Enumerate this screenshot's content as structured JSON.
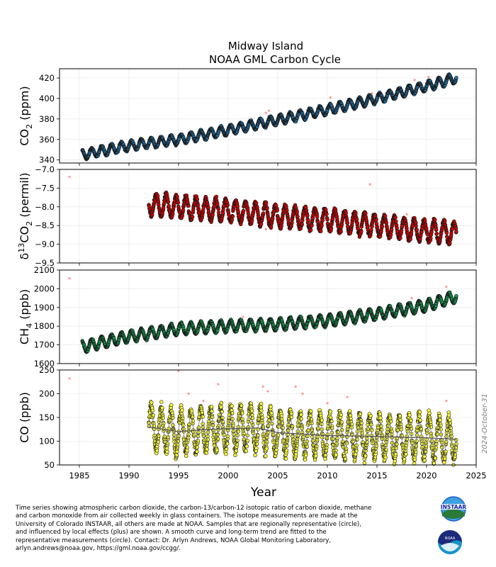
{
  "title": {
    "line1": "Midway Island",
    "line2": "NOAA GML Carbon Cycle"
  },
  "stamp": "2024-October-31",
  "caption": "Time series showing atmospheric carbon dioxide, the carbon-13/carbon-12 isotopic ratio of carbon dioxide, methane\nand carbon monoxide from air collected weekly in glass containers.  The isotope measurements are made at the\nUniversity of Colorado INSTAAR, all others are made at NOAA.  Samples that are regionally representative (circle),\nand influenced by local effects (plus) are shown.  A smooth curve and long-term trend are fitted to the\nrepresentative measurements (circle).  Contact:  Dr. Arlyn Andrews, NOAA Global Monitoring Laboratory,\narlyn.andrews@noaa.gov, https://gml.noaa.gov/ccgg/.",
  "logos": {
    "instaar": "INSTAAR",
    "noaa": "NOAA"
  },
  "colors": {
    "co2": "#1f77b4",
    "d13c": "#cc0000",
    "ch4": "#13a050",
    "co": "#ffff33",
    "outlier": "#ff8080",
    "trend": "#555555"
  },
  "chart_data": {
    "type": "scatter",
    "xlabel": "Year",
    "xlim": [
      1983,
      2025
    ],
    "xticks": [
      1985,
      1990,
      1995,
      2000,
      2005,
      2010,
      2015,
      2020,
      2025
    ],
    "panels": [
      {
        "name": "co2",
        "ylabel": "CO",
        "ylabel_sub": "2",
        "ylabel_unit": " (ppm)",
        "ylim": [
          337,
          429
        ],
        "yticks": [
          340,
          360,
          380,
          400,
          420
        ],
        "start": 1985.3,
        "end": 2023.0,
        "trend": [
          [
            1985.3,
            345
          ],
          [
            1990,
            354
          ],
          [
            1995,
            360
          ],
          [
            2000,
            369
          ],
          [
            2005,
            379
          ],
          [
            2010,
            389
          ],
          [
            2015,
            400
          ],
          [
            2020,
            412
          ],
          [
            2023,
            420
          ]
        ],
        "amplitude": 4.5,
        "show_trend": false,
        "outliers": [
          [
            2003.8,
            386
          ],
          [
            2004.1,
            388
          ],
          [
            2004.2,
            383
          ],
          [
            2010.3,
            401
          ],
          [
            2014.5,
            405
          ],
          [
            2018.8,
            418
          ],
          [
            2020.2,
            421
          ]
        ]
      },
      {
        "name": "d13c",
        "ylabel": "δ",
        "ylabel_sup": "13",
        "ylabel_mid": "CO",
        "ylabel_sub": "2",
        "ylabel_unit": " (permil)",
        "ylim": [
          -9.5,
          -7.0
        ],
        "yticks": [
          -9.5,
          -9.0,
          -8.5,
          -8.0,
          -7.5,
          -7.0
        ],
        "yticklabels": [
          "−9.5",
          "−9.0",
          "−8.5",
          "−8.0",
          "−7.5",
          "−7.0"
        ],
        "start": 1992.0,
        "end": 2023.0,
        "trend": [
          [
            1992,
            -7.93
          ],
          [
            1995,
            -8.0
          ],
          [
            2000,
            -8.1
          ],
          [
            2005,
            -8.25
          ],
          [
            2010,
            -8.35
          ],
          [
            2015,
            -8.5
          ],
          [
            2020,
            -8.65
          ],
          [
            2023,
            -8.7
          ]
        ],
        "amplitude": -0.28,
        "show_trend": false,
        "outliers": [
          [
            1984.0,
            -7.2
          ],
          [
            2014.3,
            -7.4
          ],
          [
            2018.0,
            -8.2
          ],
          [
            2003.8,
            -8.6
          ],
          [
            2020.5,
            -8.9
          ]
        ]
      },
      {
        "name": "ch4",
        "ylabel": "CH",
        "ylabel_sub": "4",
        "ylabel_unit": " (ppb)",
        "ylim": [
          1600,
          2100
        ],
        "yticks": [
          1600,
          1700,
          1800,
          1900,
          2000,
          2100
        ],
        "start": 1985.3,
        "end": 2023.0,
        "trend": [
          [
            1985.3,
            1690
          ],
          [
            1990,
            1745
          ],
          [
            1995,
            1785
          ],
          [
            2000,
            1800
          ],
          [
            2005,
            1810
          ],
          [
            2010,
            1830
          ],
          [
            2015,
            1865
          ],
          [
            2020,
            1910
          ],
          [
            2023,
            1960
          ]
        ],
        "amplitude": 30,
        "show_trend": false,
        "outliers": [
          [
            1984.0,
            2055
          ],
          [
            2022.0,
            2010
          ],
          [
            2018.5,
            1950
          ],
          [
            2001.5,
            1850
          ]
        ]
      },
      {
        "name": "co",
        "ylabel": "CO",
        "ylabel_sub": "",
        "ylabel_unit": " (ppb)",
        "ylim": [
          50,
          250
        ],
        "yticks": [
          50,
          100,
          150,
          200,
          250
        ],
        "start": 1992.0,
        "end": 2023.0,
        "trend": [
          [
            1992,
            130
          ],
          [
            1995,
            120
          ],
          [
            1998,
            125
          ],
          [
            2003,
            128
          ],
          [
            2005,
            118
          ],
          [
            2010,
            112
          ],
          [
            2015,
            110
          ],
          [
            2020,
            107
          ],
          [
            2023,
            104
          ]
        ],
        "amplitude": 45,
        "show_trend": true,
        "outliers": [
          [
            1984.0,
            232
          ],
          [
            1995.0,
            248
          ],
          [
            1996.0,
            200
          ],
          [
            1999.0,
            220
          ],
          [
            2003.5,
            215
          ],
          [
            2006.8,
            215
          ],
          [
            2007.5,
            200
          ],
          [
            2012.0,
            193
          ],
          [
            2010.0,
            180
          ],
          [
            2022.0,
            185
          ],
          [
            2004.0,
            205
          ],
          [
            1997.5,
            185
          ]
        ]
      }
    ]
  }
}
